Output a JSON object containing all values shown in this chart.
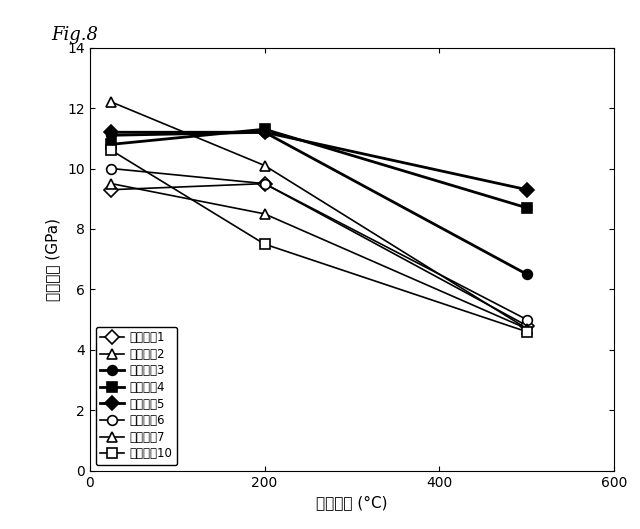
{
  "xlabel": "加熱温度 (°C)",
  "ylabel": "ナノ硬さ (GPa)",
  "xlim": [
    0,
    600
  ],
  "ylim": [
    0,
    14
  ],
  "xticks": [
    0,
    200,
    400,
    600
  ],
  "yticks": [
    0,
    2,
    4,
    6,
    8,
    10,
    12,
    14
  ],
  "x_values": [
    25,
    200,
    500
  ],
  "series": [
    {
      "label": "試験番号1",
      "values": [
        9.3,
        9.5,
        4.8
      ],
      "marker": "D",
      "filled": false,
      "linewidth": 1.2
    },
    {
      "label": "試験番号2",
      "values": [
        12.2,
        10.1,
        4.7
      ],
      "marker": "^",
      "filled": false,
      "linewidth": 1.2
    },
    {
      "label": "試験番号3",
      "values": [
        11.1,
        11.2,
        6.5
      ],
      "marker": "o",
      "filled": true,
      "linewidth": 2.0
    },
    {
      "label": "試験番号4",
      "values": [
        10.8,
        11.3,
        8.7
      ],
      "marker": "s",
      "filled": true,
      "linewidth": 2.0
    },
    {
      "label": "試験番号5",
      "values": [
        11.2,
        11.2,
        9.3
      ],
      "marker": "D",
      "filled": true,
      "linewidth": 2.0
    },
    {
      "label": "試験番号6",
      "values": [
        10.0,
        9.5,
        5.0
      ],
      "marker": "o",
      "filled": false,
      "linewidth": 1.2
    },
    {
      "label": "試験番号7",
      "values": [
        9.5,
        8.5,
        4.7
      ],
      "marker": "^",
      "filled": false,
      "linewidth": 1.2
    },
    {
      "label": "試験番号10",
      "values": [
        10.6,
        7.5,
        4.6
      ],
      "marker": "s",
      "filled": false,
      "linewidth": 1.2
    }
  ],
  "fig_label": "Fig.8"
}
